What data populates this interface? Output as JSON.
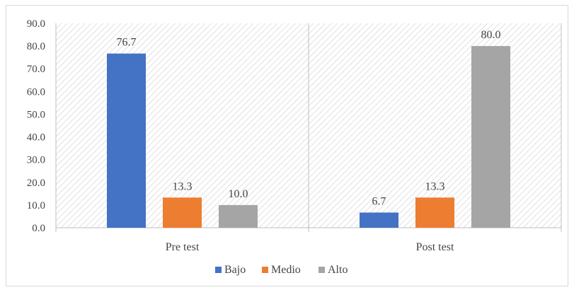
{
  "chart_data": {
    "type": "bar",
    "categories": [
      "Pre test",
      "Post test"
    ],
    "series": [
      {
        "name": "Bajo",
        "values": [
          76.7,
          6.7
        ],
        "color": "#4472c4"
      },
      {
        "name": "Medio",
        "values": [
          13.3,
          13.3
        ],
        "color": "#ed7d31"
      },
      {
        "name": "Alto",
        "values": [
          10.0,
          80.0
        ],
        "color": "#a5a5a5"
      }
    ],
    "ylim": [
      0,
      90
    ],
    "yticks": [
      "0.0",
      "10.0",
      "20.0",
      "30.0",
      "40.0",
      "50.0",
      "60.0",
      "70.0",
      "80.0",
      "90.0"
    ],
    "data_labels": [
      [
        "76.7",
        "6.7"
      ],
      [
        "13.3",
        "13.3"
      ],
      [
        "10.0",
        "80.0"
      ]
    ],
    "grid": false,
    "plot_background": "diagonal hatch",
    "legend_position": "bottom"
  }
}
